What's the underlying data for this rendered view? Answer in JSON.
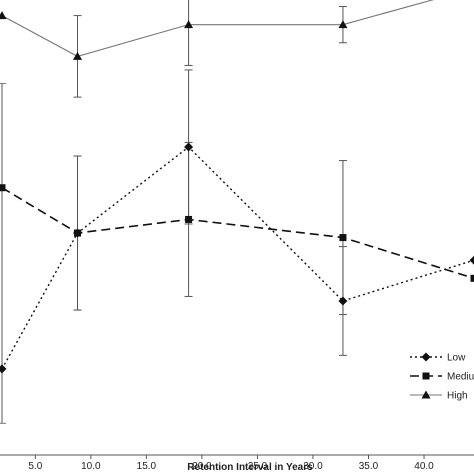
{
  "chart_data": {
    "type": "line",
    "xlabel": "Retention Interval in Years",
    "ylabel": "",
    "title": "",
    "xlim": [
      2.0,
      44.5
    ],
    "ylim": [
      0,
      100
    ],
    "x_ticks": [
      "5.0",
      "10.0",
      "15.0",
      "20.0",
      "25.0",
      "30.0",
      "35.0",
      "40.0"
    ],
    "x_tick_values": [
      5,
      10,
      15,
      20,
      25,
      30,
      35,
      40
    ],
    "legend_position": "bottom-right",
    "grid": false,
    "series": [
      {
        "name": "Low",
        "style": "dotted",
        "marker": "diamond",
        "x": [
          2.0,
          8.8,
          18.8,
          32.7,
          44.5
        ],
        "y": [
          19,
          49,
          68,
          34,
          43
        ],
        "err": [
          null,
          17,
          17,
          12,
          null
        ]
      },
      {
        "name": "Mediu",
        "style": "dashed",
        "marker": "square",
        "x": [
          2.0,
          8.8,
          18.8,
          32.7,
          44.5
        ],
        "y": [
          59,
          49,
          52,
          48,
          39
        ],
        "err": [
          null,
          17,
          17,
          17,
          null
        ]
      },
      {
        "name": "High",
        "style": "solid",
        "marker": "triangle",
        "x": [
          2.0,
          8.8,
          18.8,
          32.7,
          44.5
        ],
        "y": [
          97,
          88,
          95,
          95,
          103
        ],
        "err": [
          null,
          9,
          9,
          4,
          null
        ]
      }
    ],
    "left_error_bar": {
      "x": 2.0,
      "low": 7,
      "high": 82
    }
  }
}
